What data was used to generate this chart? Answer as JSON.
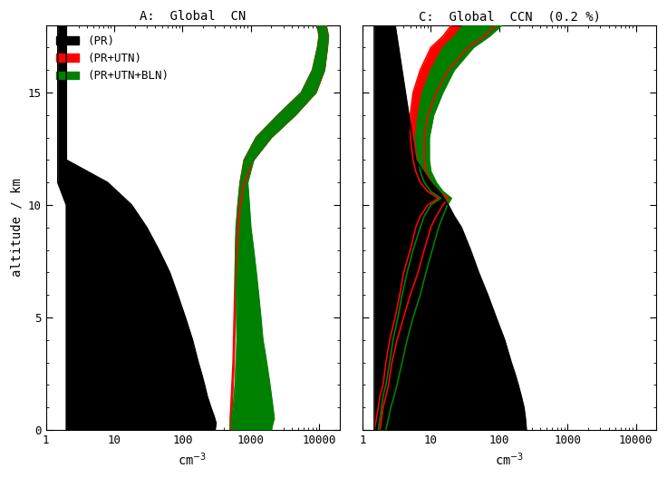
{
  "title_left": "A:  Global  CN",
  "title_right": "C:  Global  CCN  (0.2 %)",
  "ylabel": "altitude / km",
  "xlabel": "cm$^{-3}$",
  "ylim": [
    0,
    18
  ],
  "background": "white",
  "CN_PR_alt": [
    0,
    0.3,
    0.6,
    1,
    1.5,
    2,
    2.5,
    3,
    4,
    5,
    6,
    7,
    8,
    9,
    10,
    11,
    11.5,
    12,
    18
  ],
  "CN_PR_left": [
    2,
    2,
    2,
    2,
    2,
    2,
    2,
    2,
    2,
    2,
    2,
    2,
    2,
    2,
    2,
    1.5,
    1.5,
    1.5,
    1.5
  ],
  "CN_PR_right": [
    300,
    310,
    290,
    260,
    230,
    210,
    190,
    170,
    140,
    110,
    85,
    65,
    45,
    30,
    18,
    8,
    4,
    2,
    2
  ],
  "CN_UTN_alt": [
    0,
    0.5,
    1,
    1.5,
    2,
    3,
    4,
    5,
    6,
    7,
    8,
    9,
    10,
    11,
    12,
    13,
    14,
    15,
    16,
    17,
    17.5,
    18
  ],
  "CN_UTN_left": [
    500,
    500,
    510,
    520,
    530,
    550,
    560,
    570,
    580,
    590,
    600,
    620,
    650,
    700,
    800,
    1200,
    2500,
    5500,
    8000,
    9500,
    10000,
    9500
  ],
  "CN_UTN_right": [
    520,
    520,
    530,
    540,
    550,
    570,
    580,
    590,
    600,
    615,
    630,
    660,
    700,
    800,
    1100,
    2000,
    4500,
    9000,
    12000,
    13200,
    13500,
    12500
  ],
  "CN_BLN_alt": [
    0,
    0.3,
    0.5,
    1,
    1.5,
    2,
    2.5,
    3,
    3.5,
    4,
    5,
    6,
    7,
    8,
    9,
    10,
    11,
    12,
    13,
    14,
    15,
    16,
    17,
    17.5,
    18
  ],
  "CN_BLN_left": [
    500,
    510,
    520,
    550,
    570,
    590,
    600,
    610,
    620,
    630,
    620,
    610,
    600,
    600,
    610,
    650,
    700,
    800,
    1200,
    2500,
    5500,
    8000,
    9500,
    10000,
    9500
  ],
  "CN_BLN_right": [
    2000,
    2100,
    2200,
    2100,
    2000,
    1900,
    1800,
    1700,
    1600,
    1500,
    1400,
    1300,
    1200,
    1100,
    1000,
    950,
    900,
    1100,
    2000,
    4500,
    9000,
    12000,
    13200,
    13700,
    12700
  ],
  "CCN_PR_alt": [
    0,
    0.3,
    0.6,
    1,
    1.5,
    2,
    2.5,
    3,
    4,
    5,
    6,
    7,
    8,
    9,
    9.5,
    10,
    10.5,
    11,
    12,
    18
  ],
  "CCN_PR_left": [
    1.5,
    1.5,
    1.5,
    1.5,
    1.5,
    1.5,
    1.5,
    1.5,
    1.5,
    1.5,
    1.5,
    1.5,
    1.5,
    1.5,
    1.5,
    1.5,
    1.5,
    1.5,
    1.5,
    1.5
  ],
  "CCN_PR_right": [
    250,
    245,
    240,
    230,
    210,
    190,
    170,
    150,
    120,
    90,
    68,
    50,
    38,
    28,
    22,
    18,
    14,
    10,
    6,
    3
  ],
  "CCN_UTN_alt": [
    0,
    0.5,
    1,
    1.5,
    2,
    3,
    4,
    5,
    6,
    7,
    8,
    9,
    9.5,
    10.0,
    10.3,
    10.6,
    11.0,
    11.5,
    12,
    13,
    14,
    15,
    16,
    17,
    17.5,
    18
  ],
  "CCN_UTN_left": [
    1.5,
    1.6,
    1.7,
    1.8,
    2.0,
    2.2,
    2.5,
    3.0,
    3.5,
    4.0,
    5.0,
    6.0,
    7.0,
    9.0,
    13.0,
    9.0,
    7.0,
    6.0,
    5.5,
    5.0,
    5.0,
    5.5,
    7.0,
    10.0,
    15.0,
    20.0
  ],
  "CCN_UTN_right": [
    1.8,
    1.9,
    2.0,
    2.2,
    2.4,
    2.7,
    3.2,
    4.0,
    5.0,
    6.5,
    8.0,
    10.0,
    12.0,
    15.0,
    18.0,
    13.0,
    10.0,
    8.5,
    8.0,
    8.0,
    9.0,
    12.0,
    18.0,
    35.0,
    60.0,
    90.0
  ],
  "CCN_BLN_alt": [
    0,
    0.5,
    1,
    1.5,
    2,
    3,
    4,
    5,
    6,
    7,
    8,
    9,
    9.5,
    10.0,
    10.3,
    10.6,
    11.0,
    11.5,
    12,
    13,
    14,
    15,
    16,
    17,
    17.5,
    18
  ],
  "CCN_BLN_left": [
    1.7,
    1.8,
    1.9,
    2.0,
    2.2,
    2.5,
    2.8,
    3.3,
    3.8,
    4.5,
    5.5,
    7.0,
    8.0,
    10.0,
    14.0,
    10.0,
    8.0,
    7.0,
    6.5,
    6.0,
    6.5,
    7.5,
    10.0,
    15.0,
    22.0,
    30.0
  ],
  "CCN_BLN_right": [
    2.2,
    2.4,
    2.6,
    2.9,
    3.2,
    3.8,
    4.5,
    5.5,
    7.0,
    8.5,
    10.5,
    13.0,
    15.0,
    17.5,
    20.0,
    15.0,
    12.0,
    10.0,
    9.5,
    9.5,
    11.0,
    15.0,
    22.0,
    42.0,
    72.0,
    110.0
  ]
}
